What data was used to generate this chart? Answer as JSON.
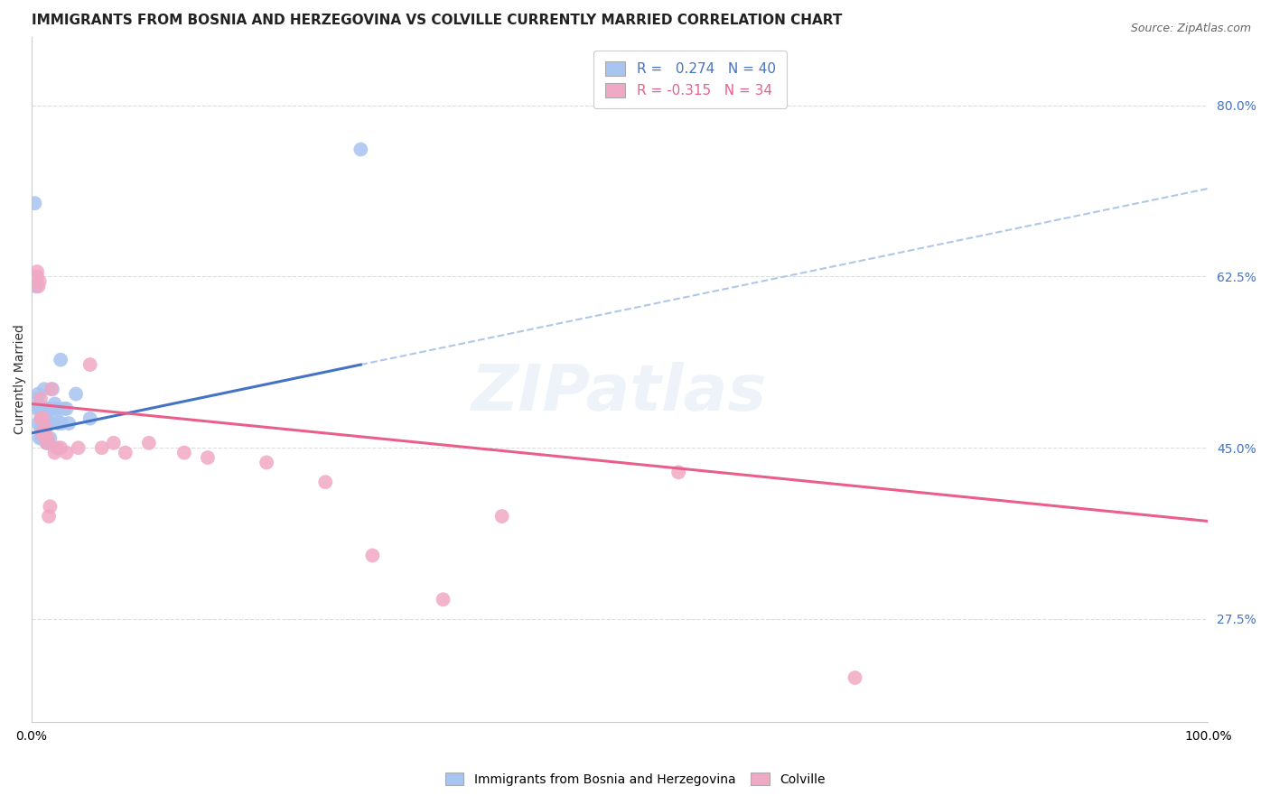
{
  "title": "IMMIGRANTS FROM BOSNIA AND HERZEGOVINA VS COLVILLE CURRENTLY MARRIED CORRELATION CHART",
  "source": "Source: ZipAtlas.com",
  "ylabel": "Currently Married",
  "xlim": [
    0.0,
    1.0
  ],
  "ylim": [
    0.17,
    0.87
  ],
  "yticks": [
    0.275,
    0.45,
    0.625,
    0.8
  ],
  "ytick_labels": [
    "27.5%",
    "45.0%",
    "62.5%",
    "80.0%"
  ],
  "background_color": "#ffffff",
  "grid_color": "#dddddd",
  "blue_R": 0.274,
  "blue_N": 40,
  "pink_R": -0.315,
  "pink_N": 34,
  "blue_scatter_x": [
    0.003,
    0.004,
    0.005,
    0.005,
    0.006,
    0.006,
    0.007,
    0.007,
    0.008,
    0.008,
    0.009,
    0.009,
    0.01,
    0.01,
    0.01,
    0.011,
    0.011,
    0.012,
    0.012,
    0.013,
    0.013,
    0.014,
    0.015,
    0.015,
    0.016,
    0.016,
    0.017,
    0.018,
    0.02,
    0.021,
    0.022,
    0.023,
    0.025,
    0.026,
    0.028,
    0.03,
    0.032,
    0.038,
    0.05,
    0.28
  ],
  "blue_scatter_y": [
    0.7,
    0.615,
    0.5,
    0.49,
    0.505,
    0.475,
    0.49,
    0.46,
    0.47,
    0.49,
    0.48,
    0.46,
    0.475,
    0.46,
    0.49,
    0.51,
    0.49,
    0.49,
    0.46,
    0.48,
    0.455,
    0.455,
    0.475,
    0.49,
    0.475,
    0.46,
    0.49,
    0.51,
    0.495,
    0.48,
    0.49,
    0.475,
    0.54,
    0.475,
    0.49,
    0.49,
    0.475,
    0.505,
    0.48,
    0.755
  ],
  "pink_scatter_x": [
    0.005,
    0.005,
    0.006,
    0.007,
    0.008,
    0.008,
    0.009,
    0.01,
    0.011,
    0.012,
    0.013,
    0.014,
    0.015,
    0.016,
    0.017,
    0.02,
    0.022,
    0.025,
    0.03,
    0.04,
    0.05,
    0.06,
    0.07,
    0.08,
    0.1,
    0.13,
    0.15,
    0.2,
    0.25,
    0.29,
    0.35,
    0.4,
    0.55,
    0.7
  ],
  "pink_scatter_y": [
    0.63,
    0.625,
    0.615,
    0.62,
    0.5,
    0.48,
    0.465,
    0.48,
    0.465,
    0.47,
    0.455,
    0.46,
    0.38,
    0.39,
    0.51,
    0.445,
    0.45,
    0.45,
    0.445,
    0.45,
    0.535,
    0.45,
    0.455,
    0.445,
    0.455,
    0.445,
    0.44,
    0.435,
    0.415,
    0.34,
    0.295,
    0.38,
    0.425,
    0.215
  ],
  "blue_line_color": "#4472c4",
  "blue_line_dashed_color": "#b0c8e8",
  "pink_line_color": "#e8608a",
  "blue_scatter_color": "#a8c4f0",
  "pink_scatter_color": "#f0a8c4",
  "blue_line_x0": 0.0,
  "blue_line_y0": 0.465,
  "blue_line_x1": 0.28,
  "blue_line_y1": 0.535,
  "blue_solid_xend": 0.28,
  "pink_line_x0": 0.0,
  "pink_line_y0": 0.495,
  "pink_line_x1": 1.0,
  "pink_line_y1": 0.375,
  "title_fontsize": 11,
  "axis_label_fontsize": 10,
  "tick_fontsize": 10,
  "legend_fontsize": 11
}
